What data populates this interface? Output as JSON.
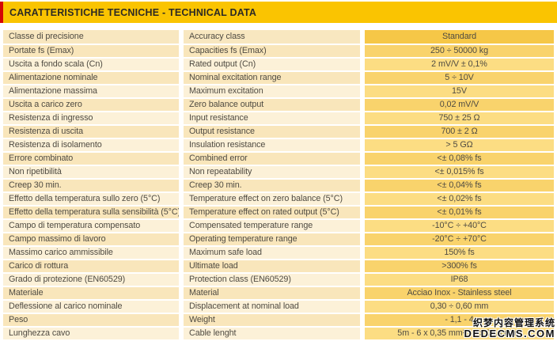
{
  "header": {
    "title": "CARATTERISTICHE TECNICHE - TECHNICAL DATA",
    "bar_color": "#fac401",
    "accent_color": "#d40505"
  },
  "table": {
    "headers": {
      "it": "Classe di precisione",
      "en": "Accuracy class",
      "value": "Standard"
    },
    "rows": [
      {
        "it": "Portate fs (Emax)",
        "en": "Capacities fs (Emax)",
        "value": "250 ÷ 50000 kg"
      },
      {
        "it": "Uscita a fondo scala (Cn)",
        "en": "Rated output (Cn)",
        "value": "2 mV/V ± 0,1%"
      },
      {
        "it": "Alimentazione nominale",
        "en": "Nominal excitation range",
        "value": "5 ÷ 10V"
      },
      {
        "it": "Alimentazione massima",
        "en": "Maximum excitation",
        "value": "15V"
      },
      {
        "it": "Uscita a carico zero",
        "en": "Zero balance output",
        "value": "0,02 mV/V"
      },
      {
        "it": "Resistenza di ingresso",
        "en": "Input resistance",
        "value": "750 ± 25 Ω"
      },
      {
        "it": "Resistenza di uscita",
        "en": "Output resistance",
        "value": "700 ± 2 Ω"
      },
      {
        "it": "Resistenza di isolamento",
        "en": "Insulation resistance",
        "value": "> 5 GΩ"
      },
      {
        "it": "Errore combinato",
        "en": "Combined error",
        "value": "<± 0,08% fs"
      },
      {
        "it": "Non ripetibilità",
        "en": "Non repeatability",
        "value": "<± 0,015% fs"
      },
      {
        "it": "Creep 30 min.",
        "en": "Creep 30 min.",
        "value": "<± 0,04% fs"
      },
      {
        "it": "Effetto della temperatura sullo zero (5°C)",
        "en": "Temperature effect on zero balance (5°C)",
        "value": "<± 0,02% fs"
      },
      {
        "it": "Effetto della temperatura sulla sensibilità (5°C)",
        "en": "Temperature effect on rated output (5°C)",
        "value": "<± 0,01% fs"
      },
      {
        "it": "Campo di temperatura compensato",
        "en": "Compensated temperature range",
        "value": "-10°C ÷ +40°C"
      },
      {
        "it": "Campo massimo di lavoro",
        "en": "Operating temperature range",
        "value": "-20°C ÷ +70°C"
      },
      {
        "it": "Massimo carico ammissibile",
        "en": "Maximum safe load",
        "value": "150% fs"
      },
      {
        "it": "Carico di rottura",
        "en": "Ultimate load",
        "value": ">300% fs"
      },
      {
        "it": "Grado di protezione (EN60529)",
        "en": "Protection class (EN60529)",
        "value": "IP68"
      },
      {
        "it": "Materiale",
        "en": "Material",
        "value": "Acciao Inox - Stainless steel"
      },
      {
        "it": "Deflessione al carico nominale",
        "en": "Displacement at nominal load",
        "value": "0,30 ÷ 0,60 mm"
      },
      {
        "it": "Peso",
        "en": "Weight",
        "value": "- 1,1 - 4"
      },
      {
        "it": "Lunghezza cavo",
        "en": "Cable lenght",
        "value": "5m - 6 x 0,35 mm² / 6 x 0,14 mm²"
      }
    ]
  },
  "watermark": {
    "line1": "织梦内容管理系统",
    "line2": "DEDECMS.COM"
  },
  "colors": {
    "header_cream": "#f8e7c0",
    "row_cream_dark": "#f9e6bb",
    "row_cream_light": "#fcf1d8",
    "value_header_gold": "#f6c747",
    "value_gold_dark": "#f9d36c",
    "value_gold_light": "#fcdd83",
    "text": "#4f4b42"
  }
}
